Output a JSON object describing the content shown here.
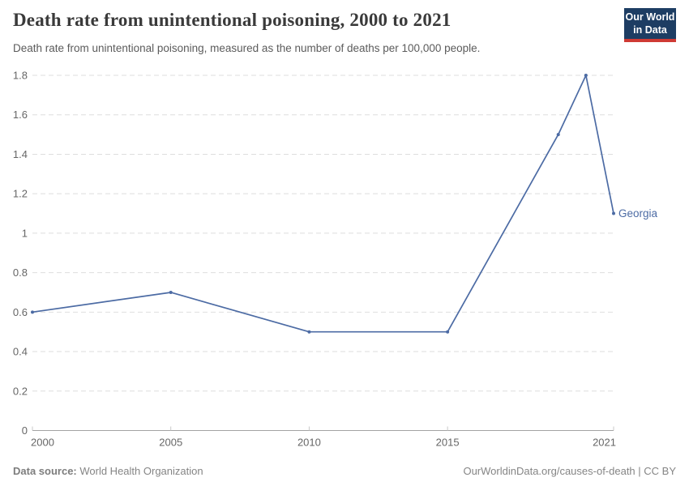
{
  "header": {
    "title": "Death rate from unintentional poisoning, 2000 to 2021",
    "subtitle": "Death rate from unintentional poisoning, measured as the number of deaths per 100,000 people.",
    "logo": {
      "line1": "Our World",
      "line2": "in Data",
      "background_color": "#1d3d63",
      "accent_color": "#cf3a34"
    }
  },
  "chart_data": {
    "type": "line",
    "title": "Death rate from unintentional poisoning, 2000 to 2021",
    "entity": "Georgia",
    "unit": "deaths per 100,000 people",
    "xlabel": "",
    "ylabel": "",
    "xlim": [
      2000,
      2021
    ],
    "ylim": [
      0,
      1.8
    ],
    "x_ticks": [
      2000,
      2005,
      2010,
      2015,
      2021
    ],
    "y_ticks": [
      0,
      0.2,
      0.4,
      0.6,
      0.8,
      1,
      1.2,
      1.4,
      1.6,
      1.8
    ],
    "grid": "horizontal-dashed",
    "legend_position": "end-of-line-label",
    "series": [
      {
        "name": "Georgia",
        "color": "#4c6ba4",
        "x": [
          2000,
          2005,
          2010,
          2015,
          2019,
          2020,
          2021
        ],
        "values": [
          0.6,
          0.7,
          0.5,
          0.5,
          1.5,
          1.8,
          1.1
        ]
      }
    ],
    "style": {
      "grid_color": "#dedede",
      "axis_line_color": "#a3a3a3",
      "tick_color": "#c9c9c9",
      "tick_label_color": "#666666"
    }
  },
  "footer": {
    "datasource_label": "Data source:",
    "datasource_value": " World Health Organization",
    "attribution": "OurWorldinData.org/causes-of-death | CC BY"
  }
}
